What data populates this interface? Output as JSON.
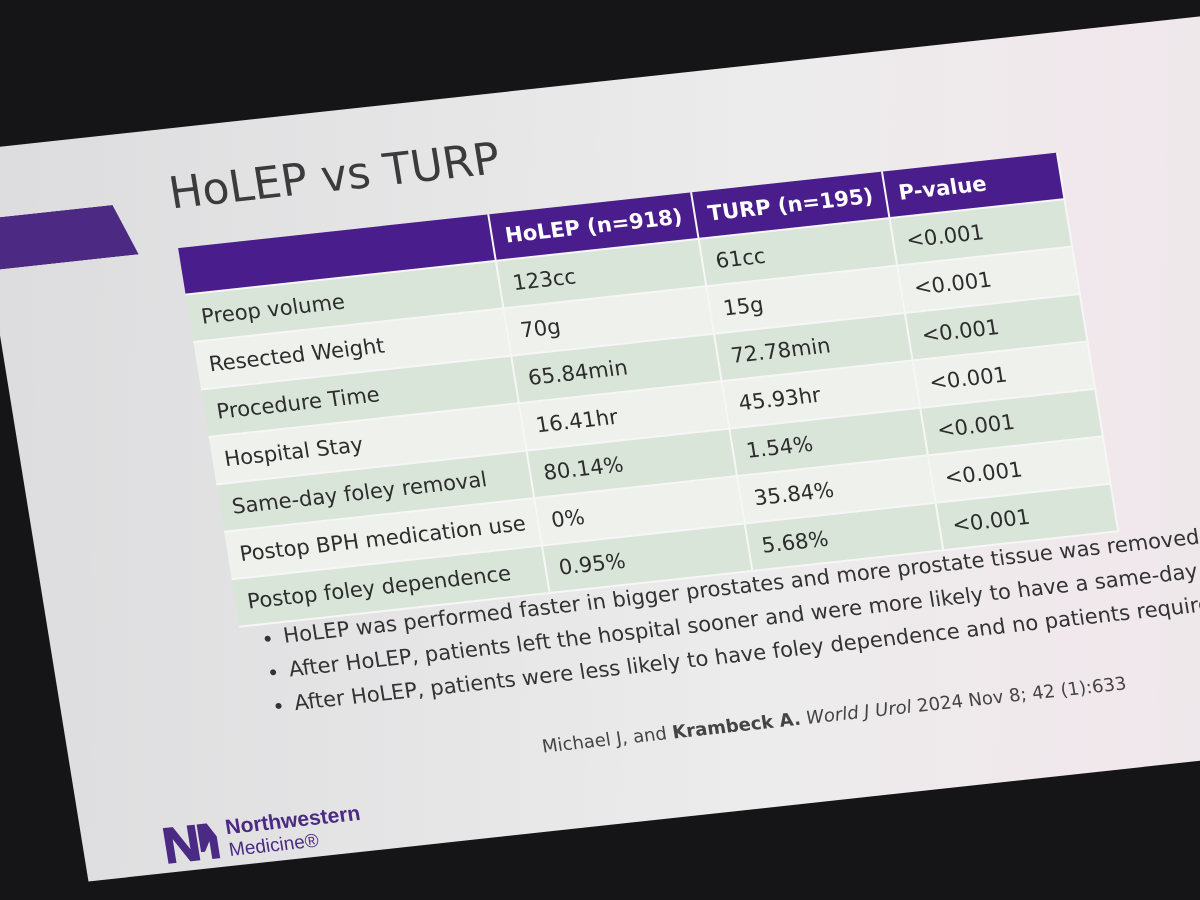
{
  "title": "HoLEP vs TURP",
  "table": {
    "header": [
      "HoLEP (n=918)",
      "TURP (n=195)",
      "P-value"
    ],
    "rows": [
      [
        "Preop volume",
        "123cc",
        "61cc",
        "<0.001"
      ],
      [
        "Resected Weight",
        "70g",
        "15g",
        "<0.001"
      ],
      [
        "Procedure Time",
        "65.84min",
        "72.78min",
        "<0.001"
      ],
      [
        "Hospital Stay",
        "16.41hr",
        "45.93hr",
        "<0.001"
      ],
      [
        "Same-day foley removal",
        "80.14%",
        "1.54%",
        "<0.001"
      ],
      [
        "Postop BPH medication use",
        "0%",
        "35.84%",
        "<0.001"
      ],
      [
        "Postop foley dependence",
        "0.95%",
        "5.68%",
        "<0.001"
      ]
    ]
  },
  "bullets": [
    "HoLEP was performed faster in bigger prostates and more prostate tissue was removed",
    "After HoLEP, patients left the hospital sooner and were more likely to have a same-day trial of void",
    "After HoLEP, patients were less likely to have foley dependence and no patients required BPH medica"
  ],
  "citation": {
    "authors": "Michael J, and",
    "senior": "Krambeck A.",
    "journal": "World J Urol",
    "details": "2024 Nov 8; 42 (1):633"
  },
  "logo": {
    "line1": "Northwestern",
    "line2": "Medicine®"
  }
}
